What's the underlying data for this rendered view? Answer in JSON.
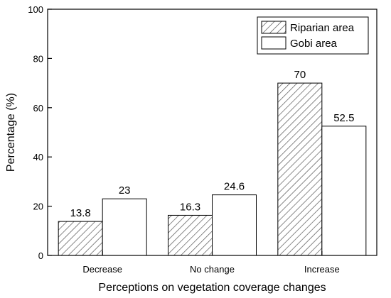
{
  "chart_data": {
    "type": "bar",
    "title": "",
    "xlabel": "Perceptions on vegetation coverage changes",
    "ylabel": "Percentage (%)",
    "categories": [
      "Decrease",
      "No change",
      "Increase"
    ],
    "ylim": [
      0,
      100
    ],
    "yticks": [
      0,
      20,
      40,
      60,
      80,
      100
    ],
    "grid": false,
    "legend_position": "top-right",
    "series": [
      {
        "name": "Riparian area",
        "pattern": "hatched",
        "values": [
          13.8,
          16.3,
          70
        ],
        "labels": [
          "13.8",
          "16.3",
          "70"
        ]
      },
      {
        "name": "Gobi area",
        "pattern": "plain",
        "values": [
          23,
          24.6,
          52.5
        ],
        "labels": [
          "23",
          "24.6",
          "52.5"
        ]
      }
    ]
  },
  "colors": {
    "fill_plain": "#ffffff",
    "stroke": "#000000",
    "hatch": "#555555"
  }
}
